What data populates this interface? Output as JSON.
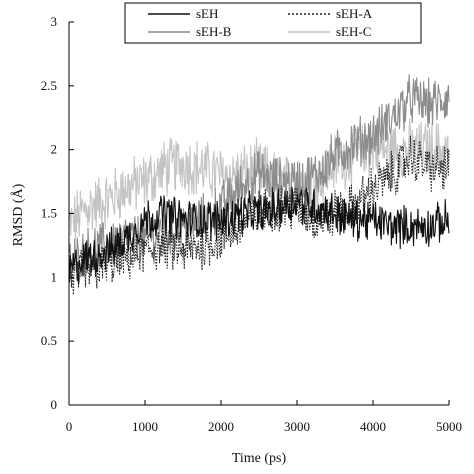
{
  "chart_data": {
    "type": "line",
    "title": "",
    "xlabel": "Time (ps)",
    "ylabel": "RMSD (Å)",
    "xlim": [
      0,
      5000
    ],
    "ylim": [
      0,
      3
    ],
    "x_ticks": [
      0,
      1000,
      2000,
      3000,
      4000,
      5000
    ],
    "y_ticks": [
      0,
      0.5,
      1,
      1.5,
      2,
      2.5,
      3
    ],
    "y_tick_labels": [
      "0",
      "0.5",
      "1",
      "1.5",
      "2",
      "2.5",
      "3"
    ],
    "grid": false,
    "legend_position": "top",
    "series": [
      {
        "name": "sEH",
        "color": "#111111",
        "dash": "solid",
        "x": [
          0,
          250,
          500,
          750,
          1000,
          1250,
          1500,
          1750,
          2000,
          2250,
          2500,
          2750,
          3000,
          3250,
          3500,
          3750,
          4000,
          4250,
          4500,
          4750,
          5000
        ],
        "y": [
          1.05,
          1.15,
          1.2,
          1.3,
          1.45,
          1.5,
          1.45,
          1.45,
          1.45,
          1.5,
          1.5,
          1.55,
          1.6,
          1.55,
          1.5,
          1.45,
          1.45,
          1.4,
          1.4,
          1.4,
          1.45
        ]
      },
      {
        "name": "sEH-A",
        "color": "#222222",
        "dash": "dotted",
        "x": [
          0,
          250,
          500,
          750,
          1000,
          1250,
          1500,
          1750,
          2000,
          2250,
          2500,
          2750,
          3000,
          3250,
          3500,
          3750,
          4000,
          4250,
          4500,
          4750,
          5000
        ],
        "y": [
          1.0,
          1.05,
          1.1,
          1.15,
          1.2,
          1.25,
          1.2,
          1.25,
          1.3,
          1.4,
          1.5,
          1.55,
          1.55,
          1.45,
          1.5,
          1.55,
          1.7,
          1.8,
          1.95,
          1.85,
          1.85
        ]
      },
      {
        "name": "sEH-B",
        "color": "#8c8c8c",
        "dash": "solid",
        "x": [
          0,
          250,
          500,
          750,
          1000,
          1250,
          1500,
          1750,
          2000,
          2250,
          2500,
          2750,
          3000,
          3250,
          3500,
          3750,
          4000,
          4250,
          4500,
          4750,
          5000
        ],
        "y": [
          1.1,
          1.2,
          1.25,
          1.3,
          1.3,
          1.35,
          1.4,
          1.45,
          1.55,
          1.7,
          1.8,
          1.75,
          1.75,
          1.8,
          1.95,
          2.05,
          2.1,
          2.25,
          2.4,
          2.35,
          2.4
        ]
      },
      {
        "name": "sEH-C",
        "color": "#c4c4c4",
        "dash": "solid",
        "x": [
          0,
          250,
          500,
          750,
          1000,
          1250,
          1500,
          1750,
          2000,
          2250,
          2500,
          2750,
          3000,
          3250,
          3500,
          3750,
          4000,
          4250,
          4500,
          4750,
          5000
        ],
        "y": [
          1.4,
          1.55,
          1.6,
          1.7,
          1.75,
          1.85,
          1.9,
          1.85,
          1.8,
          1.8,
          1.85,
          1.75,
          1.7,
          1.75,
          1.9,
          1.95,
          2.0,
          2.0,
          2.0,
          2.0,
          2.0
        ]
      }
    ]
  }
}
